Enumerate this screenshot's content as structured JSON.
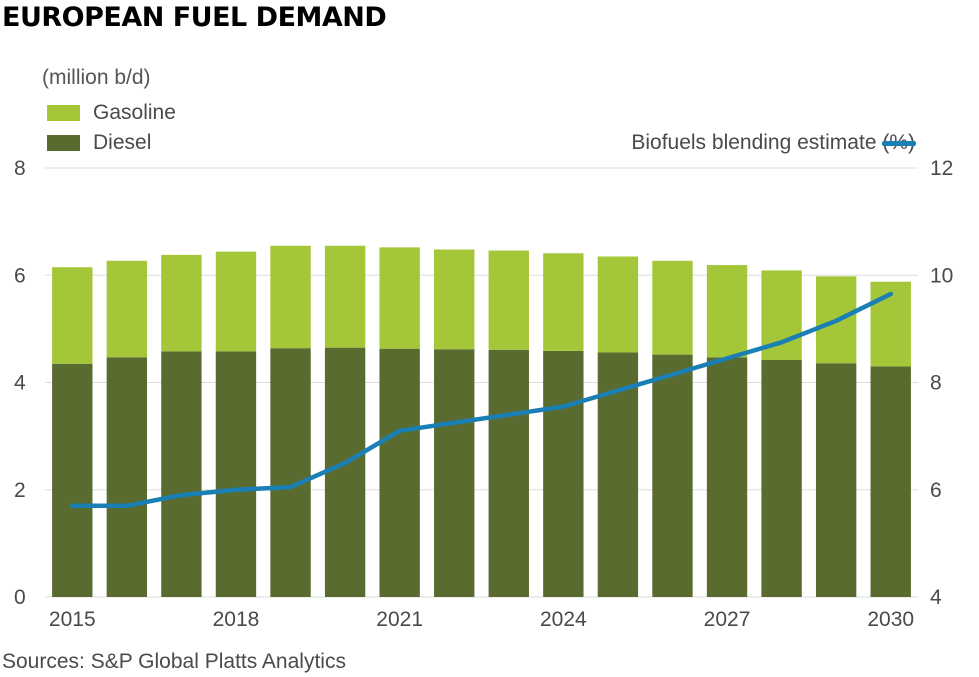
{
  "title": "EUROPEAN FUEL DEMAND",
  "unit_label": "(million b/d)",
  "source": "Sources: S&P Global Platts Analytics",
  "colors": {
    "gasoline": "#a4c639",
    "diesel": "#5a6b2f",
    "biofuels": "#1a7fb5",
    "grid": "#dddddd"
  },
  "chart_data": {
    "type": "bar",
    "stacked": true,
    "categories": [
      "2015",
      "2016",
      "2017",
      "2018",
      "2019",
      "2020",
      "2021",
      "2022",
      "2023",
      "2024",
      "2025",
      "2026",
      "2027",
      "2028",
      "2029",
      "2030"
    ],
    "x_tick_labels": [
      "2015",
      "2018",
      "2021",
      "2024",
      "2027",
      "2030"
    ],
    "series": [
      {
        "name": "Diesel",
        "axis": "left",
        "values": [
          4.35,
          4.47,
          4.58,
          4.58,
          4.64,
          4.65,
          4.63,
          4.62,
          4.61,
          4.59,
          4.56,
          4.52,
          4.47,
          4.42,
          4.36,
          4.3
        ]
      },
      {
        "name": "Gasoline",
        "axis": "left",
        "values": [
          1.8,
          1.8,
          1.8,
          1.86,
          1.91,
          1.9,
          1.89,
          1.86,
          1.85,
          1.82,
          1.79,
          1.75,
          1.72,
          1.67,
          1.62,
          1.58
        ]
      },
      {
        "name": "Biofuels blending estimate (%)",
        "axis": "right",
        "type": "line",
        "values": [
          5.7,
          5.7,
          5.9,
          6.0,
          6.05,
          6.5,
          7.1,
          7.25,
          7.4,
          7.55,
          7.85,
          8.15,
          8.45,
          8.75,
          9.15,
          9.65
        ]
      }
    ],
    "ylim_left": [
      0,
      8
    ],
    "yticks_left": [
      0,
      2,
      4,
      6,
      8
    ],
    "ylim_right": [
      4,
      12
    ],
    "yticks_right": [
      4,
      6,
      8,
      10,
      12
    ],
    "grid": true,
    "legend_placement": "top-left and top-right"
  }
}
